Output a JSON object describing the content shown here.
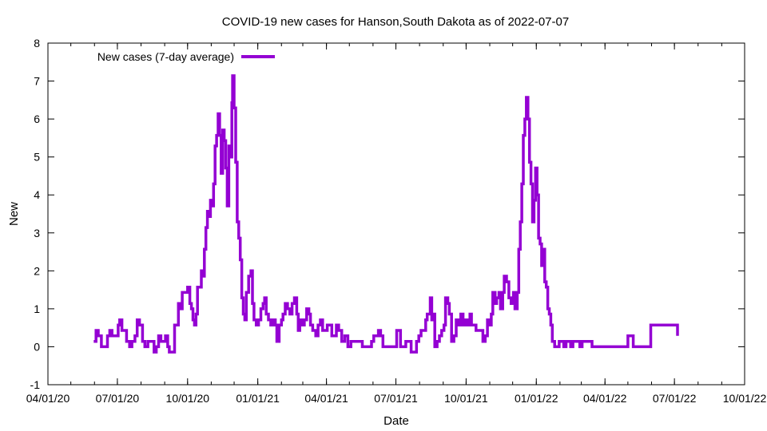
{
  "chart_data": {
    "type": "line",
    "title": "COVID-19 new cases for Hanson,South Dakota as of 2022-07-07",
    "xlabel": "Date",
    "ylabel": "New",
    "ylim": [
      -1,
      8
    ],
    "yticks": [
      -1,
      0,
      1,
      2,
      3,
      4,
      5,
      6,
      7,
      8
    ],
    "xlim": [
      "04/01/20",
      "10/01/22"
    ],
    "xticks": [
      "04/01/20",
      "07/01/20",
      "10/01/20",
      "01/01/21",
      "04/01/21",
      "07/01/21",
      "10/01/21",
      "01/01/22",
      "04/01/22",
      "07/01/22",
      "10/01/22"
    ],
    "grid": false,
    "legend_position": "top-left",
    "color": "#9400D3",
    "series": [
      {
        "name": "New cases (7-day average)",
        "points": [
          [
            "2020-05-31",
            0.14
          ],
          [
            "2020-06-03",
            0.43
          ],
          [
            "2020-06-06",
            0.29
          ],
          [
            "2020-06-10",
            0.0
          ],
          [
            "2020-06-15",
            0.0
          ],
          [
            "2020-06-18",
            0.29
          ],
          [
            "2020-06-21",
            0.43
          ],
          [
            "2020-06-24",
            0.29
          ],
          [
            "2020-06-28",
            0.29
          ],
          [
            "2020-07-02",
            0.57
          ],
          [
            "2020-07-04",
            0.71
          ],
          [
            "2020-07-07",
            0.43
          ],
          [
            "2020-07-10",
            0.43
          ],
          [
            "2020-07-13",
            0.14
          ],
          [
            "2020-07-17",
            0.0
          ],
          [
            "2020-07-20",
            0.14
          ],
          [
            "2020-07-24",
            0.29
          ],
          [
            "2020-07-27",
            0.71
          ],
          [
            "2020-07-30",
            0.57
          ],
          [
            "2020-08-03",
            0.14
          ],
          [
            "2020-08-06",
            0.0
          ],
          [
            "2020-08-10",
            0.14
          ],
          [
            "2020-08-14",
            0.14
          ],
          [
            "2020-08-18",
            -0.14
          ],
          [
            "2020-08-21",
            0.0
          ],
          [
            "2020-08-24",
            0.29
          ],
          [
            "2020-08-27",
            0.14
          ],
          [
            "2020-08-30",
            0.14
          ],
          [
            "2020-09-02",
            0.29
          ],
          [
            "2020-09-05",
            0.0
          ],
          [
            "2020-09-07",
            -0.14
          ],
          [
            "2020-09-11",
            -0.14
          ],
          [
            "2020-09-14",
            0.57
          ],
          [
            "2020-09-16",
            0.57
          ],
          [
            "2020-09-19",
            1.14
          ],
          [
            "2020-09-22",
            1.0
          ],
          [
            "2020-09-24",
            1.43
          ],
          [
            "2020-09-28",
            1.43
          ],
          [
            "2020-10-01",
            1.57
          ],
          [
            "2020-10-04",
            1.14
          ],
          [
            "2020-10-06",
            1.0
          ],
          [
            "2020-10-08",
            0.71
          ],
          [
            "2020-10-10",
            0.57
          ],
          [
            "2020-10-12",
            0.86
          ],
          [
            "2020-10-14",
            1.57
          ],
          [
            "2020-10-17",
            1.57
          ],
          [
            "2020-10-19",
            2.0
          ],
          [
            "2020-10-21",
            1.86
          ],
          [
            "2020-10-23",
            2.57
          ],
          [
            "2020-10-25",
            3.14
          ],
          [
            "2020-10-27",
            3.57
          ],
          [
            "2020-10-29",
            3.43
          ],
          [
            "2020-10-31",
            3.86
          ],
          [
            "2020-11-02",
            3.71
          ],
          [
            "2020-11-04",
            4.29
          ],
          [
            "2020-11-06",
            5.29
          ],
          [
            "2020-11-08",
            5.57
          ],
          [
            "2020-11-10",
            6.14
          ],
          [
            "2020-11-12",
            5.57
          ],
          [
            "2020-11-14",
            4.57
          ],
          [
            "2020-11-16",
            5.71
          ],
          [
            "2020-11-18",
            5.43
          ],
          [
            "2020-11-20",
            4.71
          ],
          [
            "2020-11-22",
            3.71
          ],
          [
            "2020-11-24",
            5.29
          ],
          [
            "2020-11-26",
            5.0
          ],
          [
            "2020-11-28",
            6.43
          ],
          [
            "2020-11-29",
            7.14
          ],
          [
            "2020-12-01",
            6.29
          ],
          [
            "2020-12-03",
            4.86
          ],
          [
            "2020-12-05",
            3.29
          ],
          [
            "2020-12-07",
            2.86
          ],
          [
            "2020-12-09",
            2.29
          ],
          [
            "2020-12-11",
            1.29
          ],
          [
            "2020-12-13",
            0.86
          ],
          [
            "2020-12-15",
            0.71
          ],
          [
            "2020-12-17",
            1.43
          ],
          [
            "2020-12-20",
            1.86
          ],
          [
            "2020-12-23",
            2.0
          ],
          [
            "2020-12-25",
            1.14
          ],
          [
            "2020-12-27",
            0.71
          ],
          [
            "2020-12-30",
            0.57
          ],
          [
            "2021-01-02",
            0.71
          ],
          [
            "2021-01-05",
            1.0
          ],
          [
            "2021-01-08",
            1.14
          ],
          [
            "2021-01-10",
            1.29
          ],
          [
            "2021-01-12",
            0.86
          ],
          [
            "2021-01-15",
            0.71
          ],
          [
            "2021-01-18",
            0.57
          ],
          [
            "2021-01-21",
            0.71
          ],
          [
            "2021-01-24",
            0.57
          ],
          [
            "2021-01-26",
            0.14
          ],
          [
            "2021-01-29",
            0.57
          ],
          [
            "2021-02-01",
            0.71
          ],
          [
            "2021-02-03",
            0.86
          ],
          [
            "2021-02-06",
            1.14
          ],
          [
            "2021-02-09",
            1.0
          ],
          [
            "2021-02-12",
            0.86
          ],
          [
            "2021-02-15",
            1.14
          ],
          [
            "2021-02-18",
            1.29
          ],
          [
            "2021-02-21",
            0.86
          ],
          [
            "2021-02-23",
            0.43
          ],
          [
            "2021-02-25",
            0.71
          ],
          [
            "2021-02-28",
            0.57
          ],
          [
            "2021-03-03",
            0.71
          ],
          [
            "2021-03-06",
            1.0
          ],
          [
            "2021-03-09",
            0.86
          ],
          [
            "2021-03-11",
            0.57
          ],
          [
            "2021-03-14",
            0.43
          ],
          [
            "2021-03-18",
            0.29
          ],
          [
            "2021-03-21",
            0.57
          ],
          [
            "2021-03-24",
            0.71
          ],
          [
            "2021-03-27",
            0.43
          ],
          [
            "2021-03-30",
            0.43
          ],
          [
            "2021-04-02",
            0.57
          ],
          [
            "2021-04-05",
            0.57
          ],
          [
            "2021-04-08",
            0.29
          ],
          [
            "2021-04-12",
            0.29
          ],
          [
            "2021-04-14",
            0.57
          ],
          [
            "2021-04-17",
            0.43
          ],
          [
            "2021-04-21",
            0.14
          ],
          [
            "2021-04-25",
            0.29
          ],
          [
            "2021-04-29",
            0.0
          ],
          [
            "2021-05-03",
            0.14
          ],
          [
            "2021-05-06",
            0.14
          ],
          [
            "2021-05-10",
            0.14
          ],
          [
            "2021-05-14",
            0.14
          ],
          [
            "2021-05-18",
            0.0
          ],
          [
            "2021-05-22",
            0.0
          ],
          [
            "2021-05-26",
            0.0
          ],
          [
            "2021-05-30",
            0.14
          ],
          [
            "2021-06-02",
            0.29
          ],
          [
            "2021-06-05",
            0.29
          ],
          [
            "2021-06-08",
            0.43
          ],
          [
            "2021-06-11",
            0.29
          ],
          [
            "2021-06-14",
            0.0
          ],
          [
            "2021-06-18",
            0.0
          ],
          [
            "2021-06-22",
            0.0
          ],
          [
            "2021-06-26",
            0.0
          ],
          [
            "2021-06-30",
            0.0
          ],
          [
            "2021-07-02",
            0.43
          ],
          [
            "2021-07-05",
            0.43
          ],
          [
            "2021-07-07",
            0.0
          ],
          [
            "2021-07-10",
            0.0
          ],
          [
            "2021-07-14",
            0.14
          ],
          [
            "2021-07-18",
            0.14
          ],
          [
            "2021-07-21",
            -0.14
          ],
          [
            "2021-07-25",
            -0.14
          ],
          [
            "2021-07-28",
            0.14
          ],
          [
            "2021-07-31",
            0.29
          ],
          [
            "2021-08-03",
            0.43
          ],
          [
            "2021-08-06",
            0.43
          ],
          [
            "2021-08-09",
            0.71
          ],
          [
            "2021-08-11",
            0.86
          ],
          [
            "2021-08-13",
            0.86
          ],
          [
            "2021-08-15",
            1.29
          ],
          [
            "2021-08-17",
            0.71
          ],
          [
            "2021-08-19",
            0.86
          ],
          [
            "2021-08-21",
            0.0
          ],
          [
            "2021-08-24",
            0.14
          ],
          [
            "2021-08-27",
            0.29
          ],
          [
            "2021-08-30",
            0.43
          ],
          [
            "2021-09-02",
            0.57
          ],
          [
            "2021-09-04",
            1.29
          ],
          [
            "2021-09-07",
            1.14
          ],
          [
            "2021-09-09",
            0.86
          ],
          [
            "2021-09-12",
            0.14
          ],
          [
            "2021-09-15",
            0.29
          ],
          [
            "2021-09-18",
            0.71
          ],
          [
            "2021-09-21",
            0.57
          ],
          [
            "2021-09-24",
            0.86
          ],
          [
            "2021-09-27",
            0.57
          ],
          [
            "2021-09-30",
            0.71
          ],
          [
            "2021-10-03",
            0.57
          ],
          [
            "2021-10-06",
            0.86
          ],
          [
            "2021-10-08",
            0.57
          ],
          [
            "2021-10-11",
            0.57
          ],
          [
            "2021-10-14",
            0.43
          ],
          [
            "2021-10-17",
            0.43
          ],
          [
            "2021-10-20",
            0.43
          ],
          [
            "2021-10-23",
            0.14
          ],
          [
            "2021-10-26",
            0.29
          ],
          [
            "2021-10-29",
            0.71
          ],
          [
            "2021-11-01",
            0.57
          ],
          [
            "2021-11-03",
            0.86
          ],
          [
            "2021-11-05",
            1.43
          ],
          [
            "2021-11-08",
            1.14
          ],
          [
            "2021-11-10",
            1.29
          ],
          [
            "2021-11-13",
            1.43
          ],
          [
            "2021-11-15",
            1.0
          ],
          [
            "2021-11-18",
            1.43
          ],
          [
            "2021-11-20",
            1.86
          ],
          [
            "2021-11-23",
            1.71
          ],
          [
            "2021-11-26",
            1.29
          ],
          [
            "2021-11-29",
            1.14
          ],
          [
            "2021-12-02",
            1.43
          ],
          [
            "2021-12-04",
            1.0
          ],
          [
            "2021-12-07",
            1.43
          ],
          [
            "2021-12-09",
            2.57
          ],
          [
            "2021-12-11",
            3.29
          ],
          [
            "2021-12-13",
            4.29
          ],
          [
            "2021-12-15",
            5.57
          ],
          [
            "2021-12-17",
            6.0
          ],
          [
            "2021-12-19",
            6.57
          ],
          [
            "2021-12-21",
            6.0
          ],
          [
            "2021-12-23",
            4.86
          ],
          [
            "2021-12-25",
            4.29
          ],
          [
            "2021-12-27",
            3.29
          ],
          [
            "2021-12-29",
            3.86
          ],
          [
            "2021-12-31",
            4.71
          ],
          [
            "2022-01-02",
            4.0
          ],
          [
            "2022-01-04",
            2.86
          ],
          [
            "2022-01-06",
            2.71
          ],
          [
            "2022-01-08",
            2.14
          ],
          [
            "2022-01-10",
            2.57
          ],
          [
            "2022-01-12",
            1.71
          ],
          [
            "2022-01-14",
            1.57
          ],
          [
            "2022-01-16",
            1.0
          ],
          [
            "2022-01-18",
            0.86
          ],
          [
            "2022-01-20",
            0.57
          ],
          [
            "2022-01-22",
            0.14
          ],
          [
            "2022-01-25",
            0.0
          ],
          [
            "2022-01-28",
            0.0
          ],
          [
            "2022-01-31",
            0.14
          ],
          [
            "2022-02-03",
            0.14
          ],
          [
            "2022-02-06",
            0.0
          ],
          [
            "2022-02-09",
            0.14
          ],
          [
            "2022-02-12",
            0.14
          ],
          [
            "2022-02-15",
            0.0
          ],
          [
            "2022-02-18",
            0.14
          ],
          [
            "2022-02-21",
            0.14
          ],
          [
            "2022-02-24",
            0.14
          ],
          [
            "2022-02-27",
            0.0
          ],
          [
            "2022-03-02",
            0.14
          ],
          [
            "2022-03-06",
            0.14
          ],
          [
            "2022-03-10",
            0.14
          ],
          [
            "2022-03-15",
            0.0
          ],
          [
            "2022-03-22",
            0.0
          ],
          [
            "2022-03-30",
            0.0
          ],
          [
            "2022-04-07",
            0.0
          ],
          [
            "2022-04-14",
            0.0
          ],
          [
            "2022-04-21",
            0.0
          ],
          [
            "2022-04-28",
            0.0
          ],
          [
            "2022-05-01",
            0.29
          ],
          [
            "2022-05-05",
            0.29
          ],
          [
            "2022-05-08",
            0.0
          ],
          [
            "2022-05-15",
            0.0
          ],
          [
            "2022-05-22",
            0.0
          ],
          [
            "2022-05-29",
            0.0
          ],
          [
            "2022-05-31",
            0.57
          ],
          [
            "2022-06-07",
            0.57
          ],
          [
            "2022-06-15",
            0.57
          ],
          [
            "2022-06-22",
            0.57
          ],
          [
            "2022-06-30",
            0.57
          ],
          [
            "2022-07-03",
            0.57
          ],
          [
            "2022-07-05",
            0.29
          ]
        ]
      }
    ]
  }
}
